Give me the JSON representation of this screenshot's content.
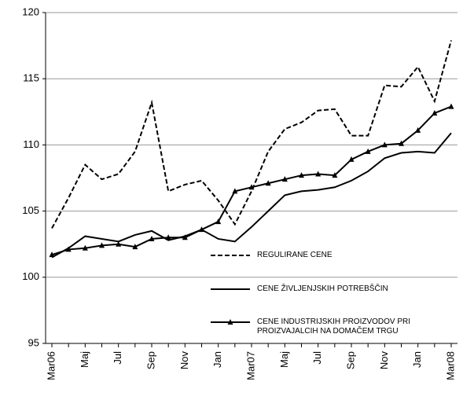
{
  "chart_data": {
    "type": "line",
    "categories": [
      "Mar06",
      null,
      "Maj",
      null,
      "Jul",
      null,
      "Sep",
      null,
      "Nov",
      null,
      "Jan",
      null,
      "Mar07",
      null,
      "Maj",
      null,
      "Jul",
      null,
      "Sep",
      null,
      "Nov",
      null,
      "Jan",
      null,
      "Mar08"
    ],
    "series": [
      {
        "name": "REGULIRANE CENE",
        "color": "#000000",
        "style": "dashed",
        "values": [
          103.7,
          106,
          108.5,
          107.4,
          107.8,
          109.5,
          113.2,
          106.5,
          107,
          107.3,
          105.8,
          104,
          106.5,
          109.5,
          111.2,
          111.7,
          112.6,
          112.7,
          110.7,
          110.7,
          114.5,
          114.4,
          115.9,
          113.3,
          117.9
        ]
      },
      {
        "name": "CENE ŽIVLJENJSKIH POTREBŠČIN",
        "color": "#000000",
        "style": "solid",
        "values": [
          101.5,
          102.2,
          103.1,
          102.9,
          102.7,
          103.2,
          103.5,
          102.8,
          103.1,
          103.6,
          102.9,
          102.7,
          103.8,
          105,
          106.2,
          106.5,
          106.6,
          106.8,
          107.3,
          108,
          109,
          109.4,
          109.5,
          109.4,
          110.9
        ]
      },
      {
        "name": "CENE INDUSTRIJSKIH PROIZVODOV  PRI PROIZVAJALCIH NA DOMAČEM TRGU",
        "color": "#000000",
        "style": "solid",
        "marker": "triangle",
        "values": [
          101.7,
          102.1,
          102.2,
          102.4,
          102.5,
          102.3,
          102.9,
          103,
          103,
          103.6,
          104.2,
          106.5,
          106.8,
          107.1,
          107.4,
          107.7,
          107.8,
          107.7,
          108.9,
          109.5,
          110,
          110.1,
          111.1,
          112.4,
          112.9
        ]
      }
    ],
    "ylim": [
      95,
      120
    ],
    "yticks": [
      95,
      100,
      105,
      110,
      115,
      120
    ],
    "grid": true
  }
}
